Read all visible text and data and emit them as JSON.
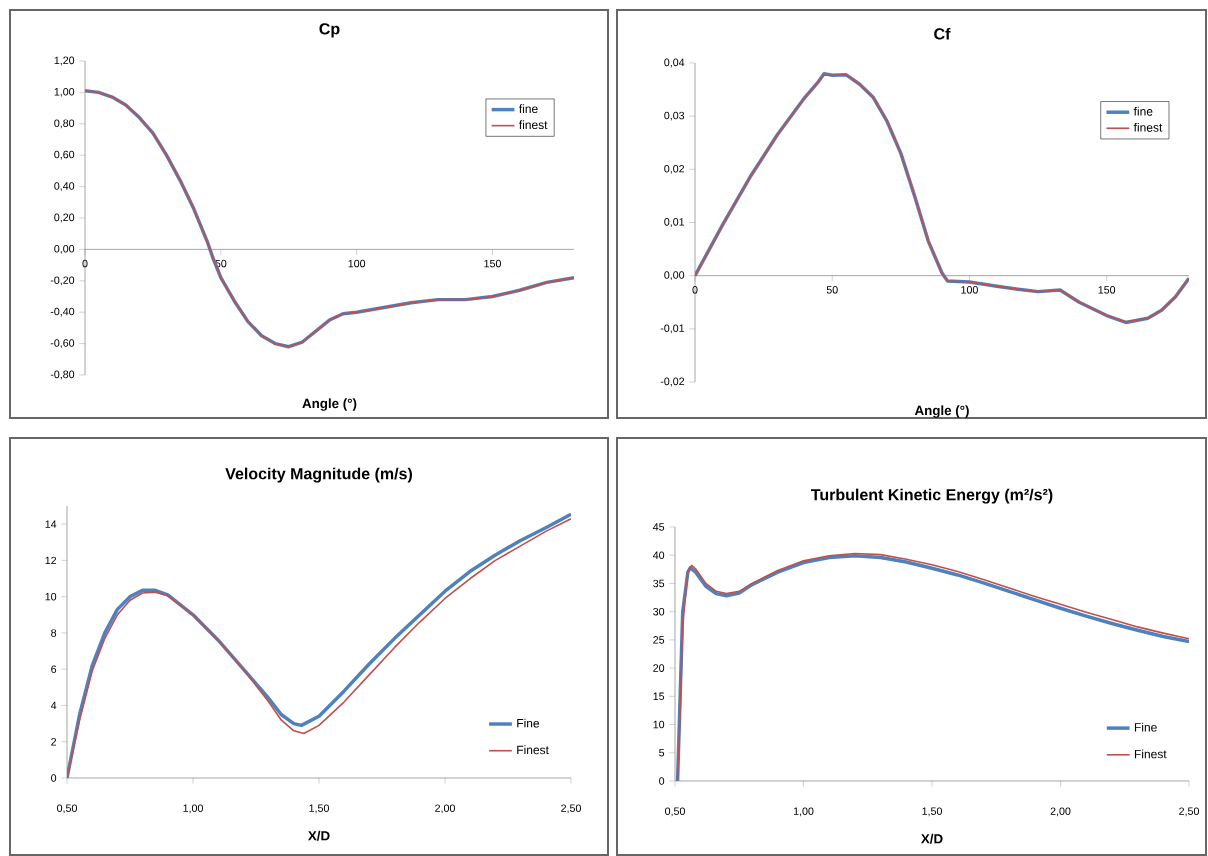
{
  "chart_data": [
    {
      "type": "line",
      "title": "Cp",
      "xlabel": "Angle (°)",
      "xlim": [
        0,
        180
      ],
      "ylim": [
        -0.8,
        1.2
      ],
      "marker": "none",
      "legend": "top right",
      "xticks": [
        0,
        50,
        100,
        150
      ],
      "yticks": [
        {
          "value": -0.8,
          "label": "-0,80"
        },
        {
          "value": -0.6,
          "label": "-0,60"
        },
        {
          "value": -0.4,
          "label": "-0,40"
        },
        {
          "value": -0.2,
          "label": "-0,20"
        },
        {
          "value": 0,
          "label": "0,00"
        },
        {
          "value": 0.2,
          "label": "0,20"
        },
        {
          "value": 0.4,
          "label": "0,40"
        },
        {
          "value": 0.6,
          "label": "0,60"
        },
        {
          "value": 0.8,
          "label": "0,80"
        },
        {
          "value": 1.0,
          "label": "1,00"
        },
        {
          "value": 1.2,
          "label": "1,20"
        }
      ],
      "series": [
        {
          "name": "fine",
          "color": "#4f81bd",
          "x": [
            0,
            5,
            10,
            15,
            20,
            25,
            30,
            35,
            40,
            45,
            47,
            50,
            55,
            60,
            65,
            70,
            75,
            80,
            85,
            90,
            95,
            100,
            110,
            120,
            130,
            140,
            150,
            160,
            170,
            180
          ],
          "values": [
            1.01,
            1.0,
            0.97,
            0.92,
            0.84,
            0.74,
            0.6,
            0.44,
            0.26,
            0.05,
            -0.05,
            -0.18,
            -0.33,
            -0.46,
            -0.55,
            -0.6,
            -0.62,
            -0.59,
            -0.52,
            -0.45,
            -0.41,
            -0.4,
            -0.37,
            -0.34,
            -0.32,
            -0.32,
            -0.3,
            -0.26,
            -0.21,
            -0.18
          ]
        },
        {
          "name": "finest",
          "color": "#c0504d",
          "x": [
            0,
            5,
            10,
            15,
            20,
            25,
            30,
            35,
            40,
            45,
            47,
            50,
            55,
            60,
            65,
            70,
            75,
            80,
            85,
            90,
            95,
            100,
            110,
            120,
            130,
            140,
            150,
            160,
            170,
            180
          ],
          "values": [
            1.01,
            1.0,
            0.97,
            0.92,
            0.84,
            0.74,
            0.6,
            0.44,
            0.26,
            0.05,
            -0.05,
            -0.18,
            -0.33,
            -0.46,
            -0.55,
            -0.6,
            -0.62,
            -0.59,
            -0.52,
            -0.45,
            -0.41,
            -0.4,
            -0.37,
            -0.34,
            -0.32,
            -0.32,
            -0.3,
            -0.26,
            -0.21,
            -0.18
          ]
        }
      ]
    },
    {
      "type": "line",
      "title": "Cf",
      "xlabel": "Angle (°)",
      "xlim": [
        0,
        180
      ],
      "ylim": [
        -0.02,
        0.04
      ],
      "marker": "none",
      "legend": "top right",
      "xticks": [
        0,
        50,
        100,
        150
      ],
      "yticks": [
        {
          "value": -0.02,
          "label": "-0,02"
        },
        {
          "value": -0.01,
          "label": "-0,01"
        },
        {
          "value": 0,
          "label": "0,00"
        },
        {
          "value": 0.01,
          "label": "0,01"
        },
        {
          "value": 0.02,
          "label": "0,02"
        },
        {
          "value": 0.03,
          "label": "0,03"
        },
        {
          "value": 0.04,
          "label": "0,04"
        }
      ],
      "series": [
        {
          "name": "fine",
          "color": "#4f81bd",
          "x": [
            0,
            10,
            20,
            30,
            40,
            45,
            47,
            50,
            55,
            60,
            65,
            70,
            75,
            80,
            85,
            90,
            92,
            100,
            110,
            120,
            125,
            133,
            140,
            150,
            157,
            165,
            170,
            175,
            180
          ],
          "values": [
            0,
            0.0095,
            0.0185,
            0.0265,
            0.0335,
            0.0365,
            0.038,
            0.0377,
            0.0378,
            0.036,
            0.0335,
            0.029,
            0.023,
            0.015,
            0.0065,
            0.0005,
            -0.001,
            -0.0012,
            -0.002,
            -0.0027,
            -0.003,
            -0.0027,
            -0.005,
            -0.0075,
            -0.0088,
            -0.008,
            -0.0065,
            -0.004,
            -0.0005
          ]
        },
        {
          "name": "finest",
          "color": "#c0504d",
          "x": [
            0,
            10,
            20,
            30,
            40,
            45,
            47,
            50,
            55,
            60,
            65,
            70,
            75,
            80,
            85,
            90,
            92,
            100,
            110,
            120,
            125,
            133,
            140,
            150,
            157,
            165,
            170,
            175,
            180
          ],
          "values": [
            0,
            0.0095,
            0.0185,
            0.0265,
            0.0335,
            0.0365,
            0.0377,
            0.0377,
            0.0378,
            0.036,
            0.0335,
            0.029,
            0.023,
            0.015,
            0.0065,
            0.0005,
            -0.001,
            -0.0012,
            -0.002,
            -0.0027,
            -0.003,
            -0.0027,
            -0.005,
            -0.0075,
            -0.0087,
            -0.008,
            -0.0065,
            -0.004,
            -0.0005
          ]
        }
      ]
    },
    {
      "type": "line",
      "title": "Velocity Magnitude (m/s)",
      "xlabel": "X/D",
      "xlim": [
        0.5,
        2.5
      ],
      "ylim": [
        0,
        15
      ],
      "marker": "none",
      "legend": "bottom right",
      "xticks": [
        {
          "value": 0.5,
          "label": "0,50"
        },
        {
          "value": 1.0,
          "label": "1,00"
        },
        {
          "value": 1.5,
          "label": "1,50"
        },
        {
          "value": 2.0,
          "label": "2,00"
        },
        {
          "value": 2.5,
          "label": "2,50"
        }
      ],
      "yticks": [
        0,
        2,
        4,
        6,
        8,
        10,
        12,
        14
      ],
      "series": [
        {
          "name": "Fine",
          "color": "#4f81bd",
          "x": [
            0.5,
            0.55,
            0.6,
            0.65,
            0.7,
            0.75,
            0.8,
            0.85,
            0.9,
            1.0,
            1.1,
            1.2,
            1.3,
            1.35,
            1.4,
            1.43,
            1.5,
            1.6,
            1.7,
            1.8,
            1.9,
            2.0,
            2.1,
            2.2,
            2.3,
            2.4,
            2.5
          ],
          "values": [
            0,
            3.5,
            6.2,
            8.0,
            9.3,
            10.0,
            10.35,
            10.35,
            10.1,
            9.0,
            7.6,
            6.0,
            4.4,
            3.5,
            3.0,
            2.9,
            3.4,
            4.8,
            6.3,
            7.7,
            9.0,
            10.3,
            11.4,
            12.3,
            13.1,
            13.8,
            14.55
          ]
        },
        {
          "name": "Finest",
          "color": "#c0504d",
          "x": [
            0.5,
            0.55,
            0.6,
            0.65,
            0.7,
            0.75,
            0.8,
            0.85,
            0.9,
            1.0,
            1.1,
            1.2,
            1.3,
            1.35,
            1.4,
            1.44,
            1.5,
            1.6,
            1.7,
            1.8,
            1.9,
            2.0,
            2.1,
            2.2,
            2.3,
            2.4,
            2.5
          ],
          "values": [
            0,
            3.2,
            5.9,
            7.7,
            9.0,
            9.8,
            10.2,
            10.25,
            10.05,
            9.0,
            7.6,
            6.0,
            4.2,
            3.2,
            2.6,
            2.45,
            2.9,
            4.2,
            5.7,
            7.2,
            8.6,
            9.9,
            11.0,
            12.0,
            12.8,
            13.6,
            14.3
          ]
        }
      ]
    },
    {
      "type": "line",
      "title": "Turbulent Kinetic Energy (m²/s²)",
      "xlabel": "X/D",
      "xlim": [
        0.5,
        2.5
      ],
      "ylim": [
        0,
        45
      ],
      "marker": "none",
      "legend": "bottom right",
      "xticks": [
        {
          "value": 0.5,
          "label": "0,50"
        },
        {
          "value": 1.0,
          "label": "1,00"
        },
        {
          "value": 1.5,
          "label": "1,50"
        },
        {
          "value": 2.0,
          "label": "2,00"
        },
        {
          "value": 2.5,
          "label": "2,50"
        }
      ],
      "yticks": [
        0,
        5,
        10,
        15,
        20,
        25,
        30,
        35,
        40,
        45
      ],
      "series": [
        {
          "name": "Fine",
          "color": "#4f81bd",
          "x": [
            0.51,
            0.52,
            0.53,
            0.55,
            0.56,
            0.58,
            0.62,
            0.66,
            0.7,
            0.75,
            0.8,
            0.9,
            1.0,
            1.1,
            1.2,
            1.3,
            1.4,
            1.5,
            1.6,
            1.7,
            1.8,
            1.9,
            2.0,
            2.1,
            2.2,
            2.3,
            2.4,
            2.5
          ],
          "values": [
            0,
            15,
            30,
            37,
            37.8,
            37,
            34.5,
            33.2,
            32.8,
            33.3,
            34.8,
            37.0,
            38.7,
            39.6,
            39.9,
            39.6,
            38.8,
            37.7,
            36.5,
            35.1,
            33.6,
            32.1,
            30.6,
            29.2,
            27.9,
            26.7,
            25.6,
            24.7
          ]
        },
        {
          "name": "Finest",
          "color": "#c0504d",
          "x": [
            0.51,
            0.52,
            0.53,
            0.55,
            0.565,
            0.58,
            0.62,
            0.66,
            0.7,
            0.75,
            0.8,
            0.9,
            1.0,
            1.1,
            1.2,
            1.3,
            1.4,
            1.5,
            1.6,
            1.7,
            1.8,
            1.9,
            2.0,
            2.1,
            2.2,
            2.3,
            2.4,
            2.5
          ],
          "values": [
            0,
            12,
            28,
            37,
            38.2,
            37.6,
            35,
            33.6,
            33.2,
            33.6,
            35,
            37.3,
            39.0,
            39.9,
            40.3,
            40.1,
            39.3,
            38.3,
            37.1,
            35.7,
            34.2,
            32.7,
            31.3,
            29.9,
            28.6,
            27.3,
            26.2,
            25.2
          ]
        }
      ]
    }
  ]
}
